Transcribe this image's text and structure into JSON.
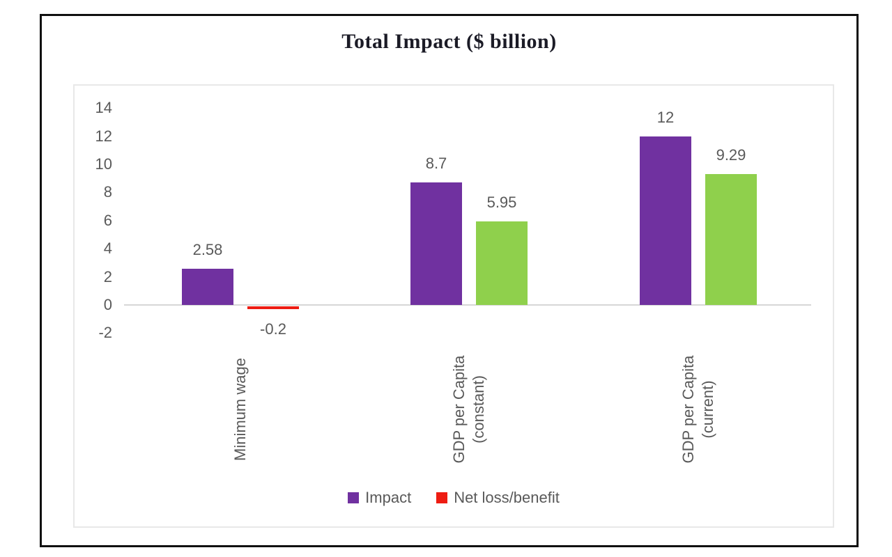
{
  "title": "Total Impact ($ billion)",
  "legend": [
    {
      "label": "Impact",
      "color": "#7031a0"
    },
    {
      "label": "Net loss/benefit",
      "color": "#ee1c12"
    }
  ],
  "colors": {
    "impact_purple": "#7031a0",
    "net_negative_red": "#ee1c12",
    "net_positive_green": "#8fd04c",
    "axis_gray": "#d6d6d6",
    "text_gray": "#595959",
    "title_color": "#1b1b26",
    "frame_border": "#101010",
    "plot_border": "#e8e8e8"
  },
  "chart_data": {
    "type": "bar",
    "title": "Total Impact ($ billion)",
    "categories": [
      "Minimum wage",
      "GDP per Capita (constant)",
      "GDP per Capita (current)"
    ],
    "category_lines": [
      [
        "Minimum wage"
      ],
      [
        "GDP per Capita",
        "(constant)"
      ],
      [
        "GDP per Capita",
        "(current)"
      ]
    ],
    "series": [
      {
        "name": "Impact",
        "color": "#7031a0",
        "values": [
          2.58,
          8.7,
          12
        ],
        "bar_colors": [
          "#7031a0",
          "#7031a0",
          "#7031a0"
        ]
      },
      {
        "name": "Net loss/benefit",
        "color": "#ee1c12",
        "values": [
          -0.2,
          5.95,
          9.29
        ],
        "bar_colors": [
          "#ee1c12",
          "#8fd04c",
          "#8fd04c"
        ]
      }
    ],
    "data_labels": [
      [
        "2.58",
        "8.7",
        "12"
      ],
      [
        "-0.2",
        "5.95",
        "9.29"
      ]
    ],
    "xlabel": "",
    "ylabel": "",
    "y_ticks": [
      14,
      12,
      10,
      8,
      6,
      4,
      2,
      0,
      -2
    ],
    "ylim": [
      -2,
      14
    ],
    "grid": false,
    "legend_position": "bottom",
    "note": "Second series is drawn red for negative values and green for positive values; legend shows red."
  }
}
